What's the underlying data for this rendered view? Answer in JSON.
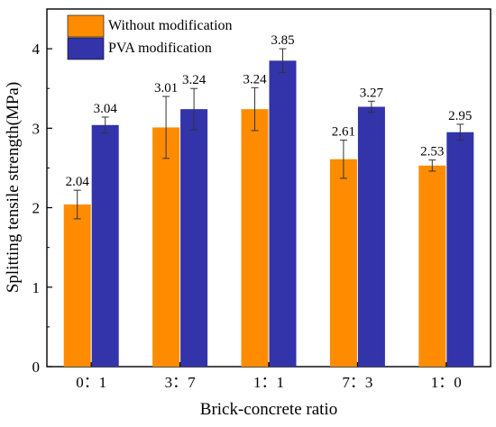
{
  "chart_data": {
    "type": "bar",
    "title": "",
    "xlabel": "Brick-concrete ratio",
    "ylabel": "Splitting tensile strength(MPa)",
    "categories": [
      "0：1",
      "3：7",
      "1：1",
      "7：3",
      "1：0"
    ],
    "ylim": [
      0,
      4.5
    ],
    "yticks": [
      0,
      1,
      2,
      3,
      4
    ],
    "series": [
      {
        "name": "Without modification",
        "color": "#FF8C00",
        "values": [
          2.04,
          3.01,
          3.24,
          2.61,
          2.53
        ],
        "errors": [
          0.18,
          0.39,
          0.27,
          0.24,
          0.07
        ],
        "labels": [
          "2.04",
          "3.01",
          "3.24",
          "2.61",
          "2.53"
        ]
      },
      {
        "name": "PVA modification",
        "color": "#3333AA",
        "values": [
          3.04,
          3.24,
          3.85,
          3.27,
          2.95
        ],
        "errors": [
          0.1,
          0.26,
          0.15,
          0.07,
          0.1
        ],
        "labels": [
          "3.04",
          "3.24",
          "3.85",
          "3.27",
          "2.95"
        ]
      }
    ],
    "legend": {
      "position": "top-left",
      "entries": [
        "Without modification",
        "PVA modification"
      ]
    },
    "grid": false
  }
}
